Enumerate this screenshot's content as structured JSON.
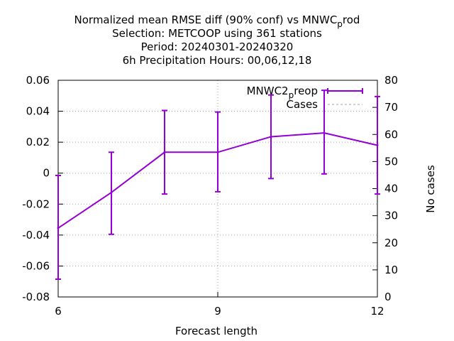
{
  "chart_data": {
    "type": "line",
    "title": {
      "line1": "Normalized mean RMSE diff (90% conf) vs MNWC",
      "line1_sub": "p",
      "line1_tail": "rod",
      "line2": "Selection: METCOOP using   361 stations",
      "line3": "Period: 20240301-20240320",
      "line4": "6h Precipitation   Hours:  00,06,12,18"
    },
    "xlabel": "Forecast length",
    "ylabel": "",
    "y2label": "No cases",
    "xlim": [
      6,
      12
    ],
    "ylim": [
      -0.08,
      0.06
    ],
    "y2lim": [
      0,
      80
    ],
    "x_ticks": [
      "6",
      "9",
      "12"
    ],
    "y_ticks": [
      "-0.08",
      "-0.06",
      "-0.04",
      "-0.02",
      "0",
      "0.02",
      "0.04",
      "0.06"
    ],
    "y2_ticks": [
      "0",
      "10",
      "20",
      "30",
      "40",
      "50",
      "60",
      "70",
      "80"
    ],
    "grid": true,
    "legend_position": "top-right",
    "series": [
      {
        "name": "MNWC2",
        "name_sub": "p",
        "name_tail": "reop",
        "color": "#9400d3",
        "style": "line-errorbars",
        "x": [
          6,
          7,
          8,
          9,
          10,
          11,
          12
        ],
        "y": [
          -0.0355,
          -0.0125,
          0.0135,
          0.0135,
          0.0235,
          0.026,
          0.018
        ],
        "err_low": [
          -0.0685,
          -0.0395,
          -0.0135,
          -0.012,
          -0.0035,
          -0.0005,
          -0.0135
        ],
        "err_high": [
          -0.0015,
          0.0135,
          0.0405,
          0.0395,
          0.0505,
          0.0535,
          0.0495
        ]
      },
      {
        "name": "Cases",
        "color": "#a0a0a0",
        "style": "dashed",
        "axis": "y2",
        "x": [],
        "y": []
      }
    ]
  }
}
